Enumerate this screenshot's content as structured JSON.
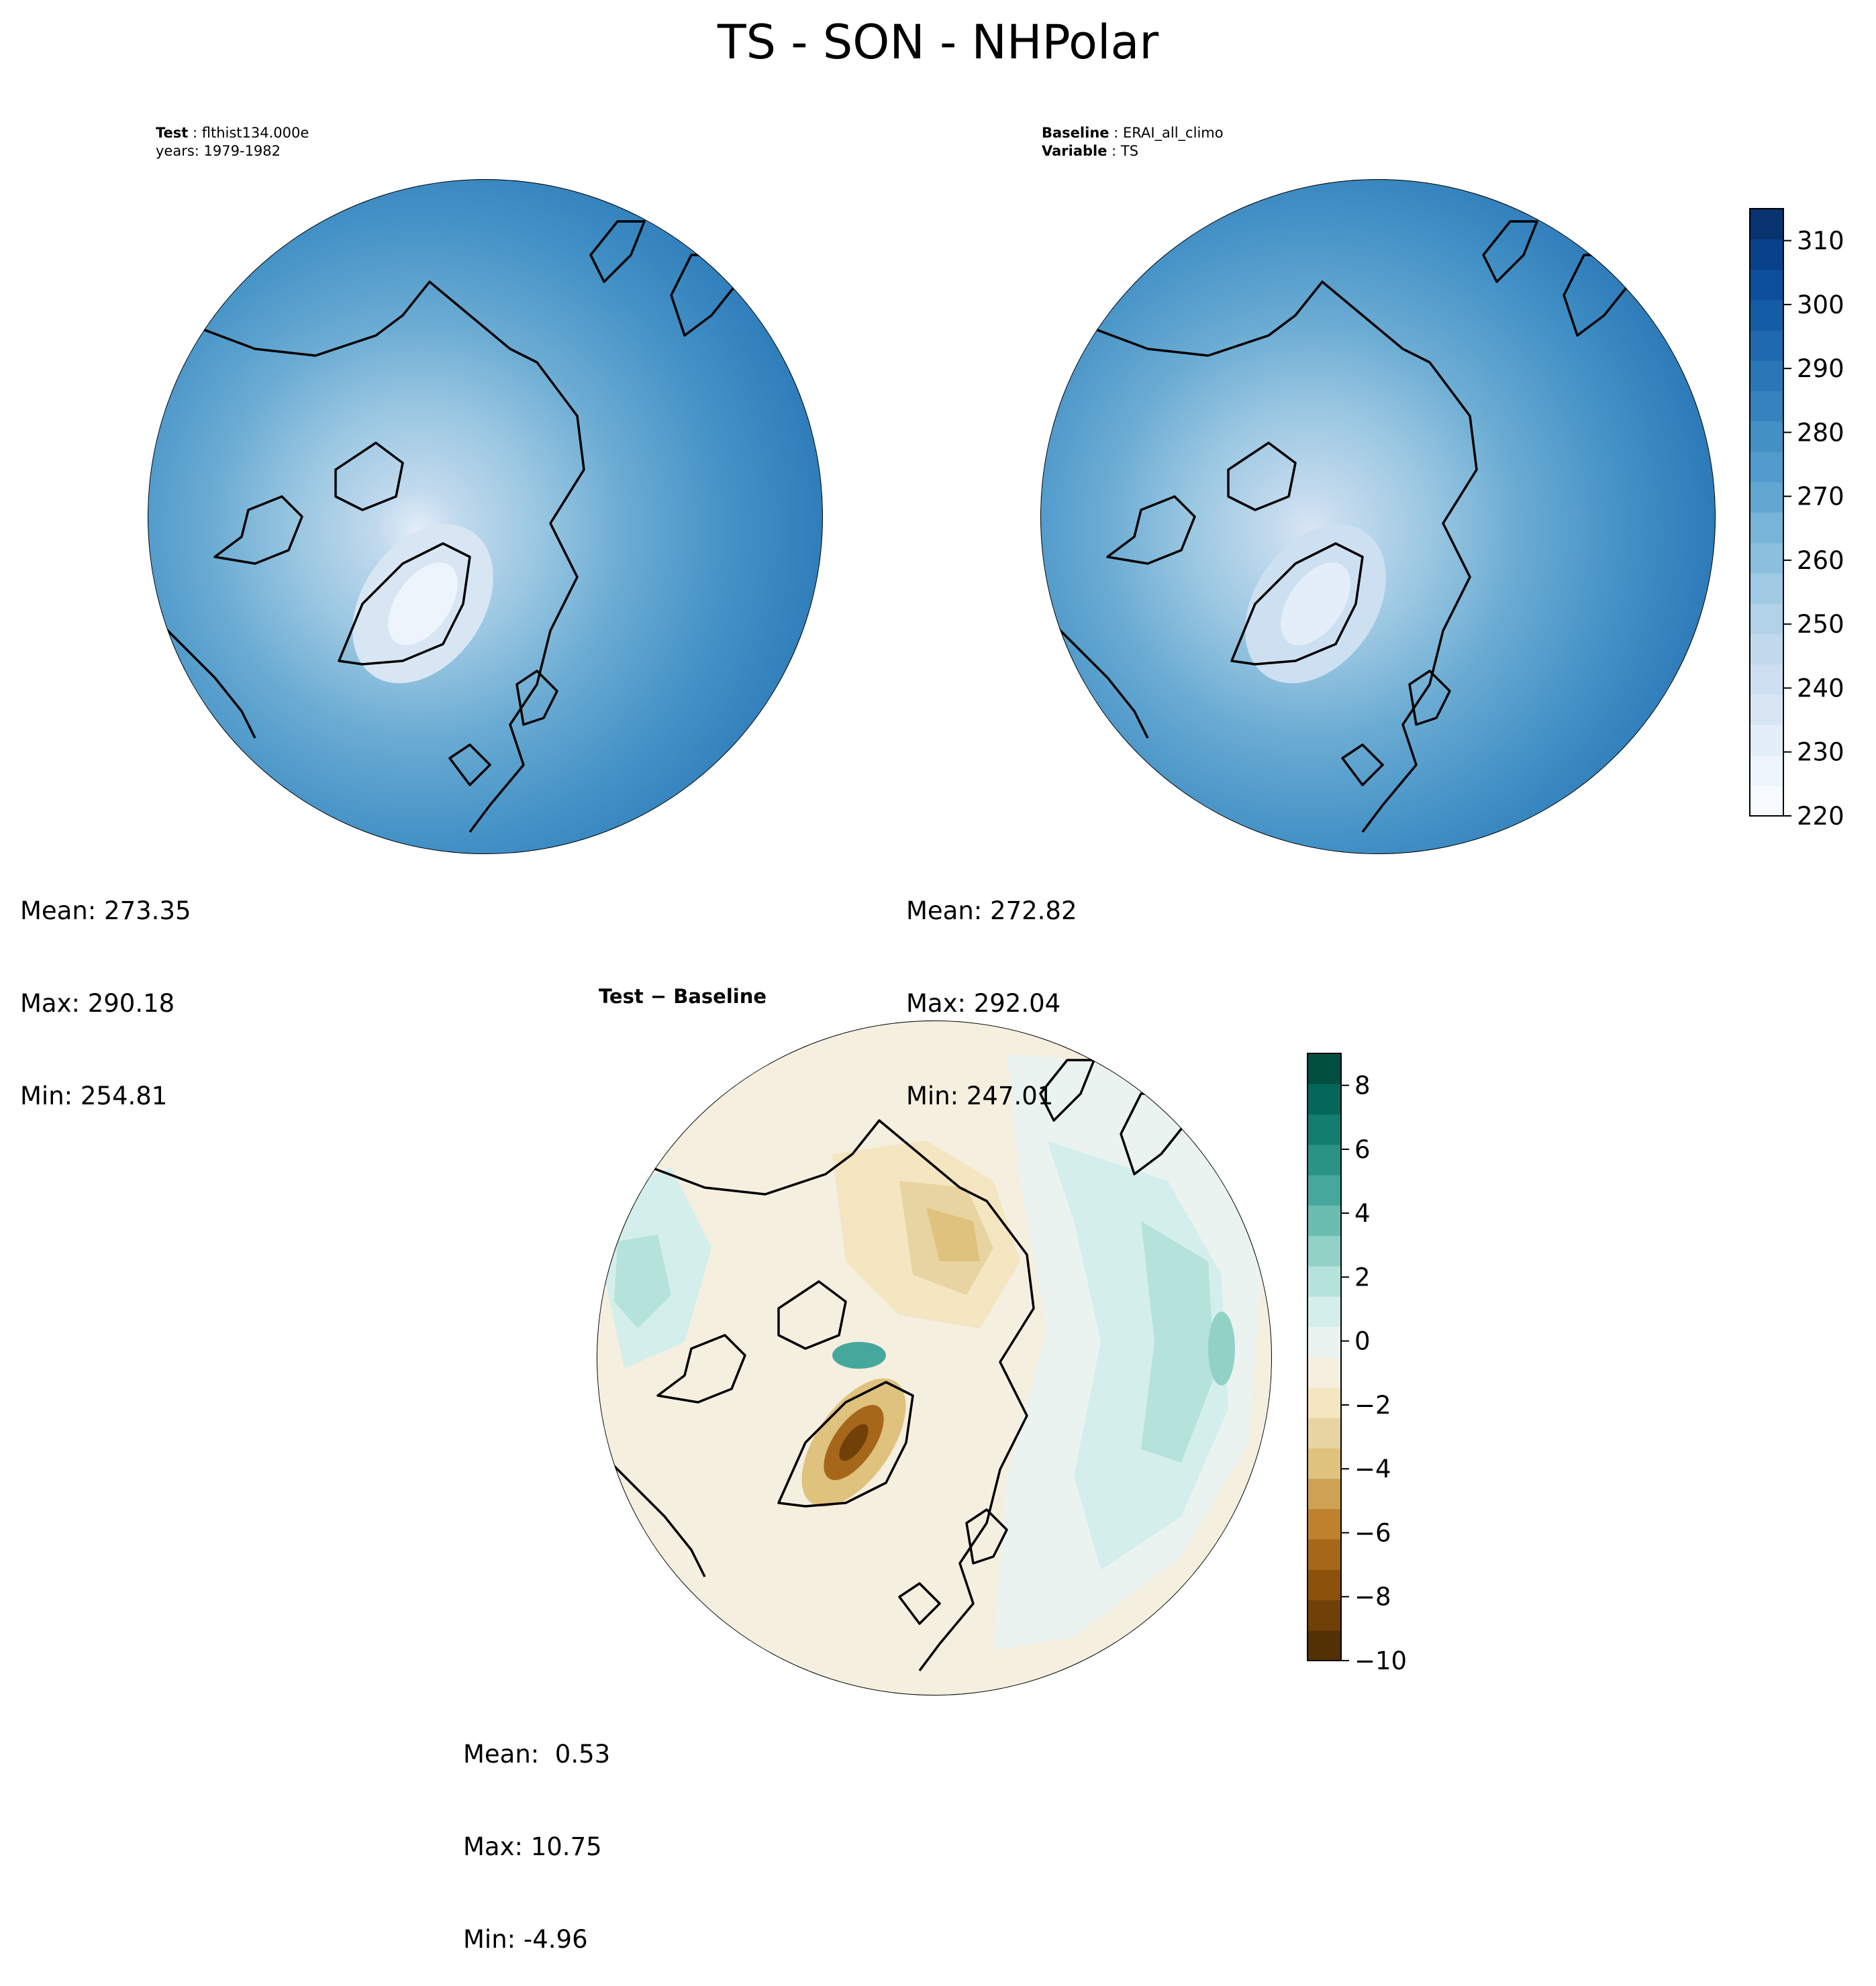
{
  "figure": {
    "title": "TS - SON - NHPolar"
  },
  "panels": {
    "test": {
      "header_label": "Test",
      "header_value": "flthist134.000e",
      "header_line2": "years: 1979-1982",
      "mean": "Mean: 273.35",
      "max": "Max: 290.18",
      "min": "Min: 254.81"
    },
    "baseline": {
      "header_label": "Baseline",
      "header_value": "ERAI_all_climo",
      "header2_label": "Variable",
      "header2_value": "TS",
      "mean": "Mean: 272.82",
      "max": "Max: 292.04",
      "min": "Min: 247.01"
    },
    "diff": {
      "title": "Test − Baseline",
      "mean": "Mean:  0.53",
      "max": "Max: 10.75",
      "min": "Min: -4.96"
    }
  },
  "colorbars": {
    "ts": {
      "min": 220,
      "max": 315,
      "ticks": [
        220,
        230,
        240,
        250,
        260,
        270,
        280,
        290,
        300,
        310
      ],
      "tick_labels": [
        "220",
        "230",
        "240",
        "250",
        "260",
        "270",
        "280",
        "290",
        "300",
        "310"
      ],
      "colors": [
        "#f7fbff",
        "#edf4fc",
        "#e3eef8",
        "#d8e6f4",
        "#cde0f1",
        "#c1d9ed",
        "#b2d2e8",
        "#a0cae3",
        "#8cbfdd",
        "#77b4d8",
        "#62a7d2",
        "#519ccc",
        "#4390c5",
        "#3583be",
        "#2977b7",
        "#1e69af",
        "#155ca6",
        "#0c4e9b",
        "#08418a",
        "#08336f"
      ]
    },
    "diff": {
      "min": -10,
      "max": 9,
      "ticks": [
        -10,
        -8,
        -6,
        -4,
        -2,
        0,
        2,
        4,
        6,
        8
      ],
      "tick_labels": [
        "−10",
        "−8",
        "−6",
        "−4",
        "−2",
        "0",
        "2",
        "4",
        "6",
        "8"
      ],
      "colors": [
        "#543005",
        "#704008",
        "#8c510a",
        "#a6671a",
        "#bf812d",
        "#cfa154",
        "#dfc27d",
        "#e8d4a0",
        "#f3e6c0",
        "#f5efe0",
        "#ebf3f1",
        "#d4efeb",
        "#b5e3dc",
        "#92d1c6",
        "#6bbdb2",
        "#46a89c",
        "#2a9385",
        "#137d6f",
        "#05665a",
        "#01503f"
      ]
    }
  }
}
